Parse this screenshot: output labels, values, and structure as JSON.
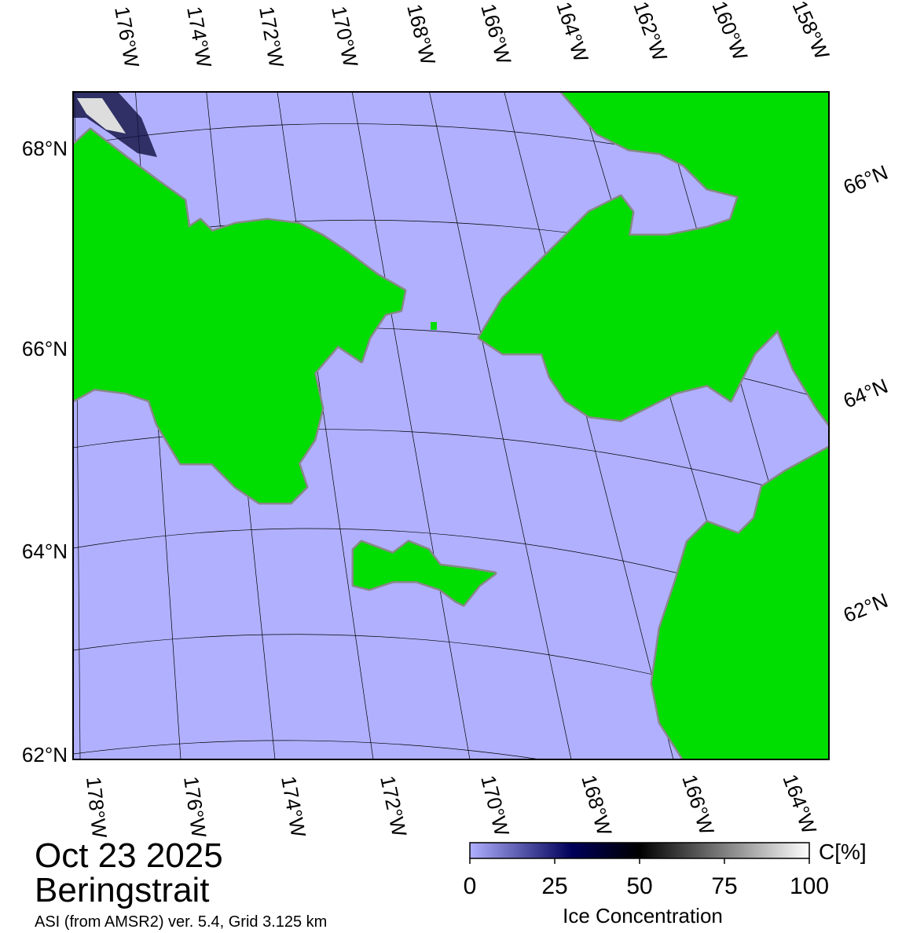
{
  "map": {
    "top_lon_labels": [
      "176°W",
      "174°W",
      "172°W",
      "170°W",
      "168°W",
      "166°W",
      "164°W",
      "162°W",
      "160°W",
      "158°W"
    ],
    "bottom_lon_labels": [
      "178°W",
      "176°W",
      "174°W",
      "172°W",
      "170°W",
      "168°W",
      "166°W",
      "164°W"
    ],
    "left_lat_labels": [
      "68°N",
      "66°N",
      "64°N",
      "62°N"
    ],
    "right_lat_labels": [
      "66°N",
      "64°N",
      "62°N"
    ]
  },
  "header": {
    "date": "Oct 23 2025",
    "region": "Beringstrait",
    "source": "ASI (from AMSR2) ver. 5.4,  Grid 3.125 km"
  },
  "colorbar": {
    "label": "Ice Concentration",
    "unit": "C[%]",
    "lim": [
      0,
      100
    ],
    "ticks": [
      0,
      25,
      50,
      75,
      100
    ]
  }
}
